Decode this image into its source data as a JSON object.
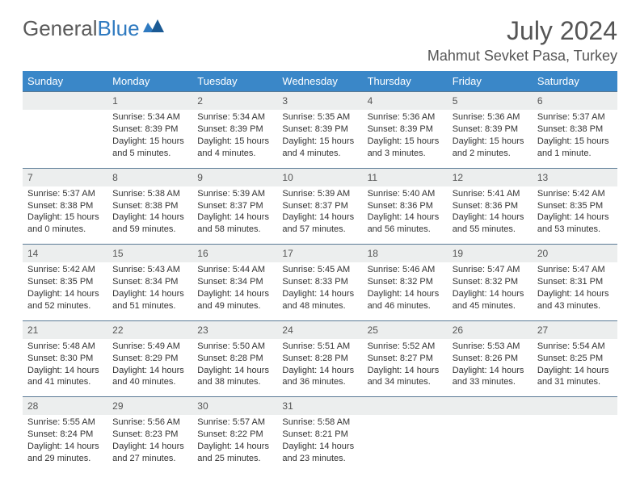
{
  "logo": {
    "text1": "General",
    "text2": "Blue"
  },
  "title": "July 2024",
  "location": "Mahmut Sevket Pasa, Turkey",
  "colors": {
    "header_bg": "#3a87c8",
    "header_text": "#ffffff",
    "daynum_bg": "#eceeee",
    "border": "#5a7a95",
    "logo_gray": "#5a5a5a",
    "logo_blue": "#2f7ac0"
  },
  "day_headers": [
    "Sunday",
    "Monday",
    "Tuesday",
    "Wednesday",
    "Thursday",
    "Friday",
    "Saturday"
  ],
  "weeks": [
    {
      "nums": [
        "",
        "1",
        "2",
        "3",
        "4",
        "5",
        "6"
      ],
      "cells": [
        null,
        {
          "sunrise": "Sunrise: 5:34 AM",
          "sunset": "Sunset: 8:39 PM",
          "day1": "Daylight: 15 hours",
          "day2": "and 5 minutes."
        },
        {
          "sunrise": "Sunrise: 5:34 AM",
          "sunset": "Sunset: 8:39 PM",
          "day1": "Daylight: 15 hours",
          "day2": "and 4 minutes."
        },
        {
          "sunrise": "Sunrise: 5:35 AM",
          "sunset": "Sunset: 8:39 PM",
          "day1": "Daylight: 15 hours",
          "day2": "and 4 minutes."
        },
        {
          "sunrise": "Sunrise: 5:36 AM",
          "sunset": "Sunset: 8:39 PM",
          "day1": "Daylight: 15 hours",
          "day2": "and 3 minutes."
        },
        {
          "sunrise": "Sunrise: 5:36 AM",
          "sunset": "Sunset: 8:39 PM",
          "day1": "Daylight: 15 hours",
          "day2": "and 2 minutes."
        },
        {
          "sunrise": "Sunrise: 5:37 AM",
          "sunset": "Sunset: 8:38 PM",
          "day1": "Daylight: 15 hours",
          "day2": "and 1 minute."
        }
      ]
    },
    {
      "nums": [
        "7",
        "8",
        "9",
        "10",
        "11",
        "12",
        "13"
      ],
      "cells": [
        {
          "sunrise": "Sunrise: 5:37 AM",
          "sunset": "Sunset: 8:38 PM",
          "day1": "Daylight: 15 hours",
          "day2": "and 0 minutes."
        },
        {
          "sunrise": "Sunrise: 5:38 AM",
          "sunset": "Sunset: 8:38 PM",
          "day1": "Daylight: 14 hours",
          "day2": "and 59 minutes."
        },
        {
          "sunrise": "Sunrise: 5:39 AM",
          "sunset": "Sunset: 8:37 PM",
          "day1": "Daylight: 14 hours",
          "day2": "and 58 minutes."
        },
        {
          "sunrise": "Sunrise: 5:39 AM",
          "sunset": "Sunset: 8:37 PM",
          "day1": "Daylight: 14 hours",
          "day2": "and 57 minutes."
        },
        {
          "sunrise": "Sunrise: 5:40 AM",
          "sunset": "Sunset: 8:36 PM",
          "day1": "Daylight: 14 hours",
          "day2": "and 56 minutes."
        },
        {
          "sunrise": "Sunrise: 5:41 AM",
          "sunset": "Sunset: 8:36 PM",
          "day1": "Daylight: 14 hours",
          "day2": "and 55 minutes."
        },
        {
          "sunrise": "Sunrise: 5:42 AM",
          "sunset": "Sunset: 8:35 PM",
          "day1": "Daylight: 14 hours",
          "day2": "and 53 minutes."
        }
      ]
    },
    {
      "nums": [
        "14",
        "15",
        "16",
        "17",
        "18",
        "19",
        "20"
      ],
      "cells": [
        {
          "sunrise": "Sunrise: 5:42 AM",
          "sunset": "Sunset: 8:35 PM",
          "day1": "Daylight: 14 hours",
          "day2": "and 52 minutes."
        },
        {
          "sunrise": "Sunrise: 5:43 AM",
          "sunset": "Sunset: 8:34 PM",
          "day1": "Daylight: 14 hours",
          "day2": "and 51 minutes."
        },
        {
          "sunrise": "Sunrise: 5:44 AM",
          "sunset": "Sunset: 8:34 PM",
          "day1": "Daylight: 14 hours",
          "day2": "and 49 minutes."
        },
        {
          "sunrise": "Sunrise: 5:45 AM",
          "sunset": "Sunset: 8:33 PM",
          "day1": "Daylight: 14 hours",
          "day2": "and 48 minutes."
        },
        {
          "sunrise": "Sunrise: 5:46 AM",
          "sunset": "Sunset: 8:32 PM",
          "day1": "Daylight: 14 hours",
          "day2": "and 46 minutes."
        },
        {
          "sunrise": "Sunrise: 5:47 AM",
          "sunset": "Sunset: 8:32 PM",
          "day1": "Daylight: 14 hours",
          "day2": "and 45 minutes."
        },
        {
          "sunrise": "Sunrise: 5:47 AM",
          "sunset": "Sunset: 8:31 PM",
          "day1": "Daylight: 14 hours",
          "day2": "and 43 minutes."
        }
      ]
    },
    {
      "nums": [
        "21",
        "22",
        "23",
        "24",
        "25",
        "26",
        "27"
      ],
      "cells": [
        {
          "sunrise": "Sunrise: 5:48 AM",
          "sunset": "Sunset: 8:30 PM",
          "day1": "Daylight: 14 hours",
          "day2": "and 41 minutes."
        },
        {
          "sunrise": "Sunrise: 5:49 AM",
          "sunset": "Sunset: 8:29 PM",
          "day1": "Daylight: 14 hours",
          "day2": "and 40 minutes."
        },
        {
          "sunrise": "Sunrise: 5:50 AM",
          "sunset": "Sunset: 8:28 PM",
          "day1": "Daylight: 14 hours",
          "day2": "and 38 minutes."
        },
        {
          "sunrise": "Sunrise: 5:51 AM",
          "sunset": "Sunset: 8:28 PM",
          "day1": "Daylight: 14 hours",
          "day2": "and 36 minutes."
        },
        {
          "sunrise": "Sunrise: 5:52 AM",
          "sunset": "Sunset: 8:27 PM",
          "day1": "Daylight: 14 hours",
          "day2": "and 34 minutes."
        },
        {
          "sunrise": "Sunrise: 5:53 AM",
          "sunset": "Sunset: 8:26 PM",
          "day1": "Daylight: 14 hours",
          "day2": "and 33 minutes."
        },
        {
          "sunrise": "Sunrise: 5:54 AM",
          "sunset": "Sunset: 8:25 PM",
          "day1": "Daylight: 14 hours",
          "day2": "and 31 minutes."
        }
      ]
    },
    {
      "nums": [
        "28",
        "29",
        "30",
        "31",
        "",
        "",
        ""
      ],
      "cells": [
        {
          "sunrise": "Sunrise: 5:55 AM",
          "sunset": "Sunset: 8:24 PM",
          "day1": "Daylight: 14 hours",
          "day2": "and 29 minutes."
        },
        {
          "sunrise": "Sunrise: 5:56 AM",
          "sunset": "Sunset: 8:23 PM",
          "day1": "Daylight: 14 hours",
          "day2": "and 27 minutes."
        },
        {
          "sunrise": "Sunrise: 5:57 AM",
          "sunset": "Sunset: 8:22 PM",
          "day1": "Daylight: 14 hours",
          "day2": "and 25 minutes."
        },
        {
          "sunrise": "Sunrise: 5:58 AM",
          "sunset": "Sunset: 8:21 PM",
          "day1": "Daylight: 14 hours",
          "day2": "and 23 minutes."
        },
        null,
        null,
        null
      ]
    }
  ]
}
